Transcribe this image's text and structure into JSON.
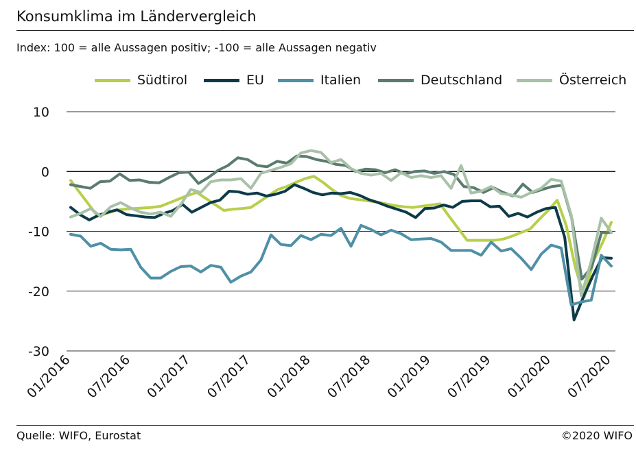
{
  "header": {
    "title": "Konsumklima im Ländervergleich",
    "subtitle": "Index: 100 = alle Aussagen positiv; -100 =  alle Aussagen negativ"
  },
  "footer": {
    "source": "Quelle: WIFO, Eurostat",
    "copyright": "©2020 WIFO"
  },
  "colors": {
    "suedtirol": "#b7cf4c",
    "eu": "#0d3a48",
    "italien": "#4f90a6",
    "deutschland": "#5b7b6e",
    "oesterreich": "#a8c1a8"
  },
  "chart_data": {
    "type": "line",
    "ylim": [
      -30,
      10
    ],
    "yticks": [
      "10",
      "0",
      "-10",
      "-20",
      "-30"
    ],
    "xticks": [
      "01/2016",
      "07/2016",
      "01/2017",
      "07/2017",
      "01/2018",
      "07/2018",
      "01/2019",
      "07/2019",
      "01/2020",
      "07/2020"
    ],
    "x_start": "01/2016",
    "x_end": "07/2020",
    "grid": "horizontal",
    "legend_position": "top",
    "series": [
      {
        "name": "Südtirol",
        "color_key": "suedtirol",
        "values": [
          -1.5,
          -3.5,
          -5.5,
          -7.5,
          -7,
          -6.5,
          -6.3,
          -6.2,
          -6.1,
          -6,
          -5.8,
          -5.2,
          -4.6,
          -4,
          -3.5,
          -4.5,
          -5.5,
          -6.5,
          -6.3,
          -6.2,
          -6,
          -5,
          -4,
          -3,
          -2.5,
          -1.8,
          -1.2,
          -0.8,
          -1.8,
          -3,
          -4,
          -4.5,
          -4.7,
          -4.9,
          -5.1,
          -5.4,
          -5.7,
          -5.9,
          -6,
          -5.8,
          -5.6,
          -5.4,
          -7.5,
          -9.5,
          -11.5,
          -11.5,
          -11.5,
          -11.5,
          -11.3,
          -10.8,
          -10.2,
          -9.6,
          -8,
          -6.5,
          -4.8,
          -9,
          -16,
          -21,
          -15,
          -12,
          -8.5
        ]
      },
      {
        "name": "EU",
        "color_key": "eu",
        "values": [
          -6,
          -7.2,
          -8.1,
          -7.3,
          -6.8,
          -6.4,
          -7.2,
          -7.4,
          -7.6,
          -7.7,
          -7,
          -6.5,
          -5.5,
          -6.8,
          -6,
          -5.2,
          -4.8,
          -3.3,
          -3.4,
          -3.8,
          -3.6,
          -4.1,
          -3.8,
          -3.3,
          -2.2,
          -2.8,
          -3.5,
          -3.9,
          -3.6,
          -3.7,
          -3.5,
          -4,
          -4.7,
          -5.2,
          -5.8,
          -6.3,
          -6.8,
          -7.7,
          -6.2,
          -6.1,
          -5.6,
          -6,
          -5,
          -4.9,
          -4.9,
          -5.9,
          -5.8,
          -7.5,
          -7,
          -7.6,
          -6.8,
          -6.2,
          -6,
          -11,
          -24.8,
          -21,
          -17.5,
          -14.4,
          -14.5
        ]
      },
      {
        "name": "Italien",
        "color_key": "italien",
        "values": [
          -10.5,
          -10.8,
          -12.5,
          -12,
          -13,
          -13.1,
          -13,
          -16,
          -17.8,
          -17.8,
          -16.7,
          -15.9,
          -15.8,
          -16.8,
          -15.7,
          -16,
          -18.5,
          -17.5,
          -16.8,
          -14.8,
          -10.6,
          -12.2,
          -12.4,
          -10.7,
          -11.4,
          -10.5,
          -10.7,
          -9.5,
          -12.5,
          -9,
          -9.7,
          -10.6,
          -9.8,
          -10.4,
          -11.4,
          -11.3,
          -11.2,
          -11.8,
          -13.2,
          -13.2,
          -13.2,
          -14,
          -11.8,
          -13.3,
          -12.9,
          -14.5,
          -16.4,
          -13.8,
          -12.3,
          -12.8,
          -22.3,
          -21.8,
          -21.5,
          -14,
          -15.8
        ]
      },
      {
        "name": "Deutschland",
        "color_key": "deutschland",
        "values": [
          -2.2,
          -2.5,
          -2.8,
          -1.7,
          -1.6,
          -0.4,
          -1.5,
          -1.4,
          -1.8,
          -1.9,
          -1,
          -0.2,
          -0.1,
          -2,
          -1,
          0.2,
          1,
          2.3,
          2,
          1,
          0.8,
          1.7,
          1.4,
          2.6,
          2.5,
          2,
          1.7,
          1.2,
          1,
          0,
          0.4,
          0.3,
          -0.2,
          0.3,
          -0.4,
          0,
          0.1,
          -0.3,
          0,
          -0.5,
          -2.5,
          -2.7,
          -3.5,
          -2.7,
          -3.5,
          -4.1,
          -2.1,
          -3.5,
          -3,
          -2.5,
          -2.3,
          -8,
          -18,
          -16,
          -10.2,
          -10.2
        ]
      },
      {
        "name": "Österreich",
        "color_key": "oesterreich",
        "values": [
          -7.6,
          -7,
          -6.2,
          -7.5,
          -5.9,
          -5.2,
          -6.1,
          -6.8,
          -7.1,
          -6.8,
          -7.5,
          -5.5,
          -3,
          -3.5,
          -1.7,
          -1.4,
          -1.4,
          -1.2,
          -2.8,
          -0.3,
          0.2,
          0.7,
          1.3,
          3.1,
          3.5,
          3.2,
          1.5,
          2,
          0.5,
          -0.3,
          -0.6,
          -0.3,
          -1.5,
          -0.2,
          -1,
          -0.7,
          -1,
          -0.7,
          -2.8,
          1,
          -3.6,
          -3.3,
          -2.5,
          -3.7,
          -3.9,
          -4.3,
          -3.5,
          -2.8,
          -1.3,
          -1.6,
          -7.3,
          -20.8,
          -15,
          -7.8,
          -10.2
        ]
      }
    ]
  }
}
